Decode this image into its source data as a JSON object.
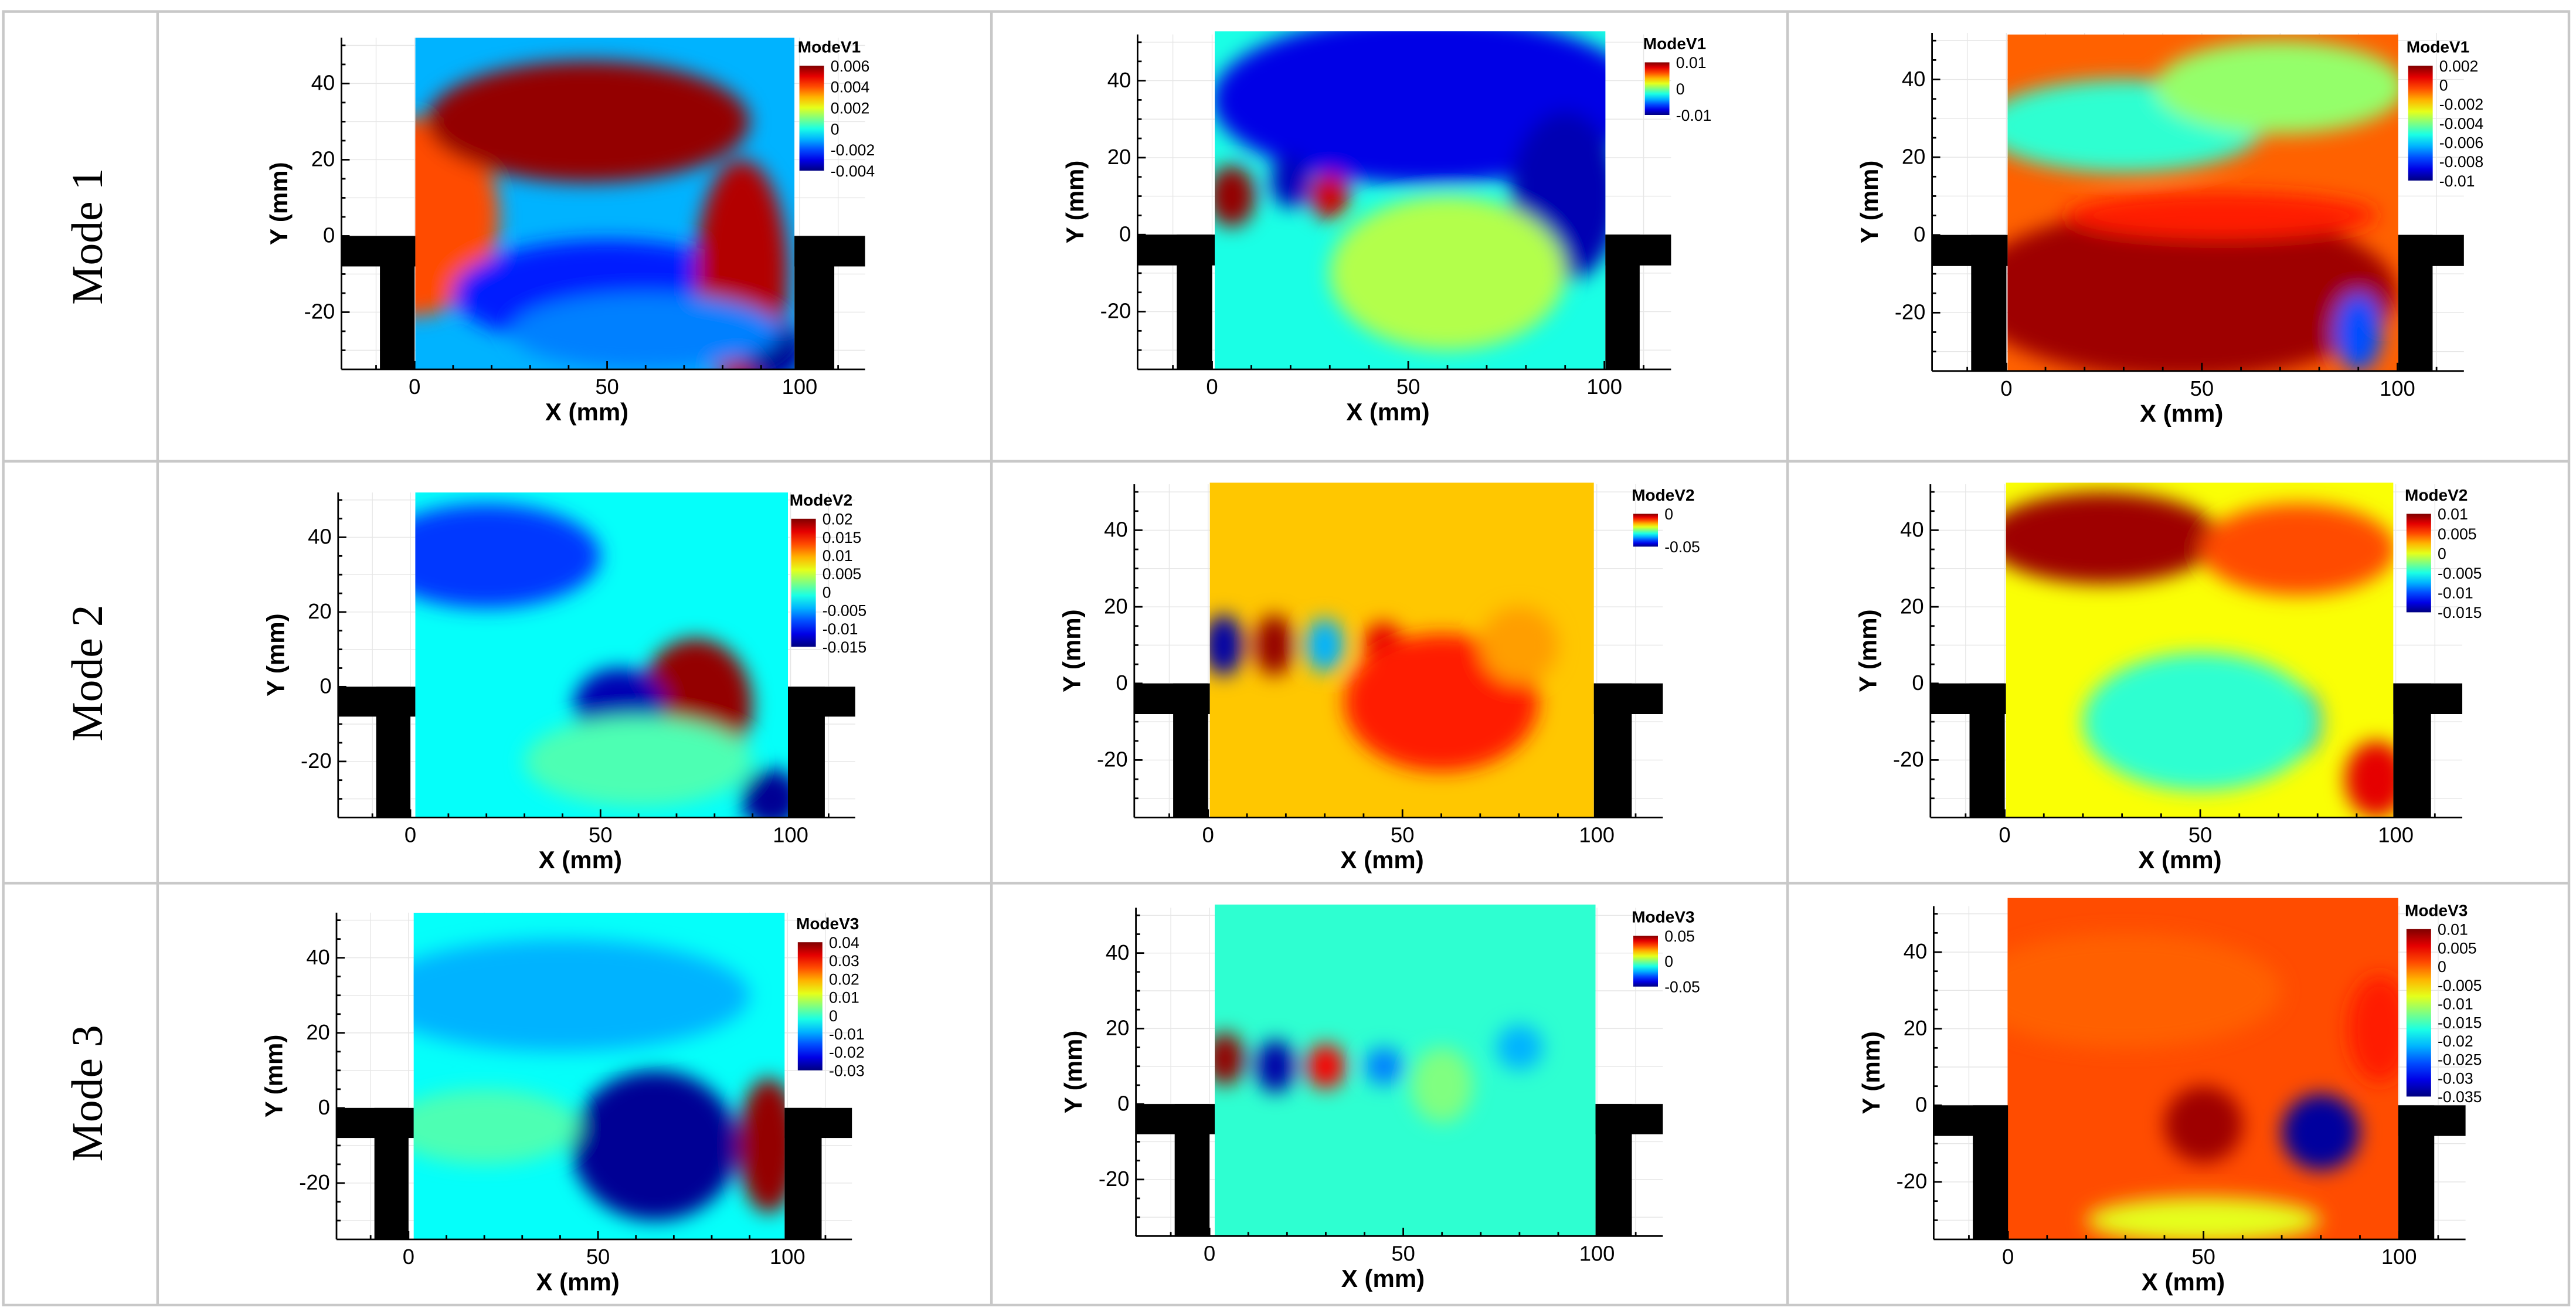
{
  "figure": {
    "row_labels": [
      "Mode 1",
      "Mode 2",
      "Mode 3"
    ]
  },
  "colors": {
    "grid_line": "#c8c8c8",
    "wall": "#000000",
    "axis": "#000000",
    "minor_grid": "#e6e6e6"
  },
  "chart_data": [
    {
      "type": "heatmap",
      "row": 1,
      "col": 1,
      "xlabel": "X (mm)",
      "ylabel": "Y (mm)",
      "xlim": [
        -19,
        117
      ],
      "ylim": [
        -35,
        52
      ],
      "xticks": [
        0,
        50,
        100
      ],
      "yticks": [
        -20,
        0,
        20,
        40
      ],
      "colorbar_title": "ModeV1",
      "colorbar_ticks": [
        "0.006",
        "0.004",
        "0.002",
        "0",
        "-0.002",
        "-0.004"
      ],
      "colorbar_range": [
        -0.004,
        0.006
      ]
    },
    {
      "type": "heatmap",
      "row": 1,
      "col": 2,
      "xlabel": "X (mm)",
      "ylabel": "Y (mm)",
      "xlim": [
        -19,
        117
      ],
      "ylim": [
        -35,
        52
      ],
      "xticks": [
        0,
        50,
        100
      ],
      "yticks": [
        -20,
        0,
        20,
        40
      ],
      "colorbar_title": "ModeV1",
      "colorbar_ticks": [
        "0.01",
        "0",
        "-0.01"
      ],
      "colorbar_range": [
        -0.01,
        0.01
      ]
    },
    {
      "type": "heatmap",
      "row": 1,
      "col": 3,
      "xlabel": "X (mm)",
      "ylabel": "Y (mm)",
      "xlim": [
        -19,
        117
      ],
      "ylim": [
        -35,
        52
      ],
      "xticks": [
        0,
        50,
        100
      ],
      "yticks": [
        -20,
        0,
        20,
        40
      ],
      "colorbar_title": "ModeV1",
      "colorbar_ticks": [
        "0.002",
        "0",
        "-0.002",
        "-0.004",
        "-0.006",
        "-0.008",
        "-0.01"
      ],
      "colorbar_range": [
        -0.01,
        0.002
      ]
    },
    {
      "type": "heatmap",
      "row": 2,
      "col": 1,
      "xlabel": "X (mm)",
      "ylabel": "Y (mm)",
      "xlim": [
        -19,
        117
      ],
      "ylim": [
        -35,
        52
      ],
      "xticks": [
        0,
        50,
        100
      ],
      "yticks": [
        -20,
        0,
        20,
        40
      ],
      "colorbar_title": "ModeV2",
      "colorbar_ticks": [
        "0.02",
        "0.015",
        "0.01",
        "0.005",
        "0",
        "-0.005",
        "-0.01",
        "-0.015"
      ],
      "colorbar_range": [
        -0.015,
        0.02
      ]
    },
    {
      "type": "heatmap",
      "row": 2,
      "col": 2,
      "xlabel": "X (mm)",
      "ylabel": "Y (mm)",
      "xlim": [
        -19,
        117
      ],
      "ylim": [
        -35,
        52
      ],
      "xticks": [
        0,
        50,
        100
      ],
      "yticks": [
        -20,
        0,
        20,
        40
      ],
      "colorbar_title": "ModeV2",
      "colorbar_ticks": [
        "0",
        "-0.05"
      ],
      "colorbar_range": [
        -0.05,
        0
      ]
    },
    {
      "type": "heatmap",
      "row": 2,
      "col": 3,
      "xlabel": "X (mm)",
      "ylabel": "Y (mm)",
      "xlim": [
        -19,
        117
      ],
      "ylim": [
        -35,
        52
      ],
      "xticks": [
        0,
        50,
        100
      ],
      "yticks": [
        -20,
        0,
        20,
        40
      ],
      "colorbar_title": "ModeV2",
      "colorbar_ticks": [
        "0.01",
        "0.005",
        "0",
        "-0.005",
        "-0.01",
        "-0.015"
      ],
      "colorbar_range": [
        -0.015,
        0.01
      ]
    },
    {
      "type": "heatmap",
      "row": 3,
      "col": 1,
      "xlabel": "X (mm)",
      "ylabel": "Y (mm)",
      "xlim": [
        -19,
        117
      ],
      "ylim": [
        -35,
        52
      ],
      "xticks": [
        0,
        50,
        100
      ],
      "yticks": [
        -20,
        0,
        20,
        40
      ],
      "colorbar_title": "ModeV3",
      "colorbar_ticks": [
        "0.04",
        "0.03",
        "0.02",
        "0.01",
        "0",
        "-0.01",
        "-0.02",
        "-0.03"
      ],
      "colorbar_range": [
        -0.03,
        0.04
      ]
    },
    {
      "type": "heatmap",
      "row": 3,
      "col": 2,
      "xlabel": "X (mm)",
      "ylabel": "Y (mm)",
      "xlim": [
        -19,
        117
      ],
      "ylim": [
        -35,
        52
      ],
      "xticks": [
        0,
        50,
        100
      ],
      "yticks": [
        -20,
        0,
        20,
        40
      ],
      "colorbar_title": "ModeV3",
      "colorbar_ticks": [
        "0.05",
        "0",
        "-0.05"
      ],
      "colorbar_range": [
        -0.05,
        0.05
      ]
    },
    {
      "type": "heatmap",
      "row": 3,
      "col": 3,
      "xlabel": "X (mm)",
      "ylabel": "Y (mm)",
      "xlim": [
        -19,
        117
      ],
      "ylim": [
        -35,
        52
      ],
      "xticks": [
        0,
        50,
        100
      ],
      "yticks": [
        -20,
        0,
        20,
        40
      ],
      "colorbar_title": "ModeV3",
      "colorbar_ticks": [
        "0.01",
        "0.005",
        "0",
        "-0.005",
        "-0.01",
        "-0.015",
        "-0.02",
        "-0.025",
        "-0.03",
        "-0.035"
      ],
      "colorbar_range": [
        -0.035,
        0.01
      ]
    }
  ]
}
